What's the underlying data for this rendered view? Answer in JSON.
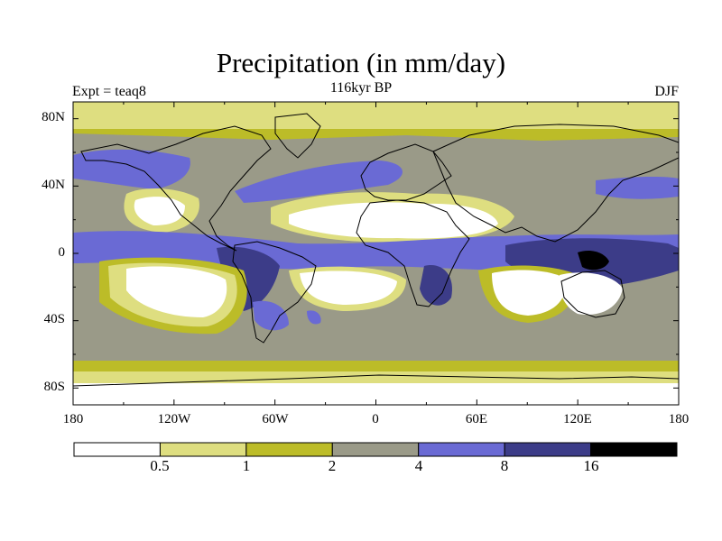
{
  "title": "Precipitation (in mm/day)",
  "subtitle": "116kyr BP",
  "left_label": "Expt = teaq8",
  "right_label": "DJF",
  "colors": {
    "below_0_5": "#ffffff",
    "0_5_to_1": "#dede80",
    "1_to_2": "#bcbc28",
    "2_to_4": "#9a9a88",
    "4_to_8": "#6a6ad4",
    "8_to_16": "#3c3c88",
    "above_16": "#000000"
  },
  "chart_data": {
    "type": "heatmap",
    "title": "Precipitation (in mm/day)",
    "subtitle": "116kyr BP",
    "xlabel": "",
    "ylabel": "",
    "x_ticks": [
      "180",
      "120W",
      "60W",
      "0",
      "60E",
      "120E",
      "180"
    ],
    "x_tick_values": [
      -180,
      -120,
      -60,
      0,
      60,
      120,
      180
    ],
    "y_ticks": [
      "80N",
      "40N",
      "0",
      "40S",
      "80S"
    ],
    "y_tick_values": [
      80,
      40,
      0,
      -40,
      -80
    ],
    "xlim": [
      -180,
      180
    ],
    "ylim": [
      -90,
      90
    ],
    "colorbar": {
      "levels": [
        "0.5",
        "1",
        "2",
        "4",
        "8",
        "16"
      ],
      "level_values": [
        0.5,
        1,
        2,
        4,
        8,
        16
      ],
      "colors": [
        "#ffffff",
        "#dede80",
        "#bcbc28",
        "#9a9a88",
        "#6a6ad4",
        "#3c3c88",
        "#000000"
      ]
    }
  }
}
